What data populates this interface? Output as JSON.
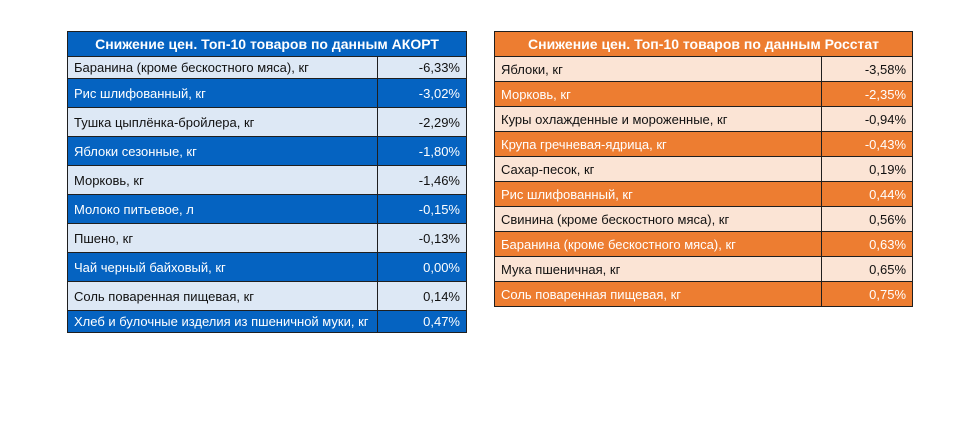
{
  "akort": {
    "title": "Снижение цен. Топ-10 товаров по данным АКОРТ",
    "rows": [
      {
        "name": "Баранина (кроме бескостного мяса), кг",
        "value": "-6,33%"
      },
      {
        "name": "Рис шлифованный, кг",
        "value": "-3,02%"
      },
      {
        "name": "Тушка цыплёнка-бройлера, кг",
        "value": "-2,29%"
      },
      {
        "name": "Яблоки сезонные, кг",
        "value": "-1,80%"
      },
      {
        "name": "Морковь, кг",
        "value": "-1,46%"
      },
      {
        "name": "Молоко питьевое, л",
        "value": "-0,15%"
      },
      {
        "name": "Пшено, кг",
        "value": "-0,13%"
      },
      {
        "name": "Чай черный байховый, кг",
        "value": "0,00%"
      },
      {
        "name": "Соль поваренная пищевая, кг",
        "value": "0,14%"
      },
      {
        "name": "Хлеб и булочные изделия из пшеничной муки, кг",
        "value": "0,47%"
      }
    ],
    "colors": {
      "header": "#0563c1",
      "light": "#dde8f5",
      "dark": "#0563c1"
    }
  },
  "rosstat": {
    "title": "Снижение цен. Топ-10 товаров по данным Росстат",
    "rows": [
      {
        "name": "Яблоки, кг",
        "value": "-3,58%"
      },
      {
        "name": "Морковь, кг",
        "value": "-2,35%"
      },
      {
        "name": "Куры охлажденные и мороженные, кг",
        "value": "-0,94%"
      },
      {
        "name": "Крупа гречневая-ядрица, кг",
        "value": "-0,43%"
      },
      {
        "name": "Сахар-песок, кг",
        "value": "0,19%"
      },
      {
        "name": "Рис шлифованный, кг",
        "value": "0,44%"
      },
      {
        "name": "Свинина (кроме бескостного мяса), кг",
        "value": "0,56%"
      },
      {
        "name": "Баранина (кроме бескостного мяса), кг",
        "value": "0,63%"
      },
      {
        "name": "Мука пшеничная, кг",
        "value": "0,65%"
      },
      {
        "name": "Соль поваренная пищевая, кг",
        "value": "0,75%"
      }
    ],
    "colors": {
      "header": "#ed7d31",
      "light": "#fbe4d5",
      "dark": "#ed7d31"
    }
  }
}
